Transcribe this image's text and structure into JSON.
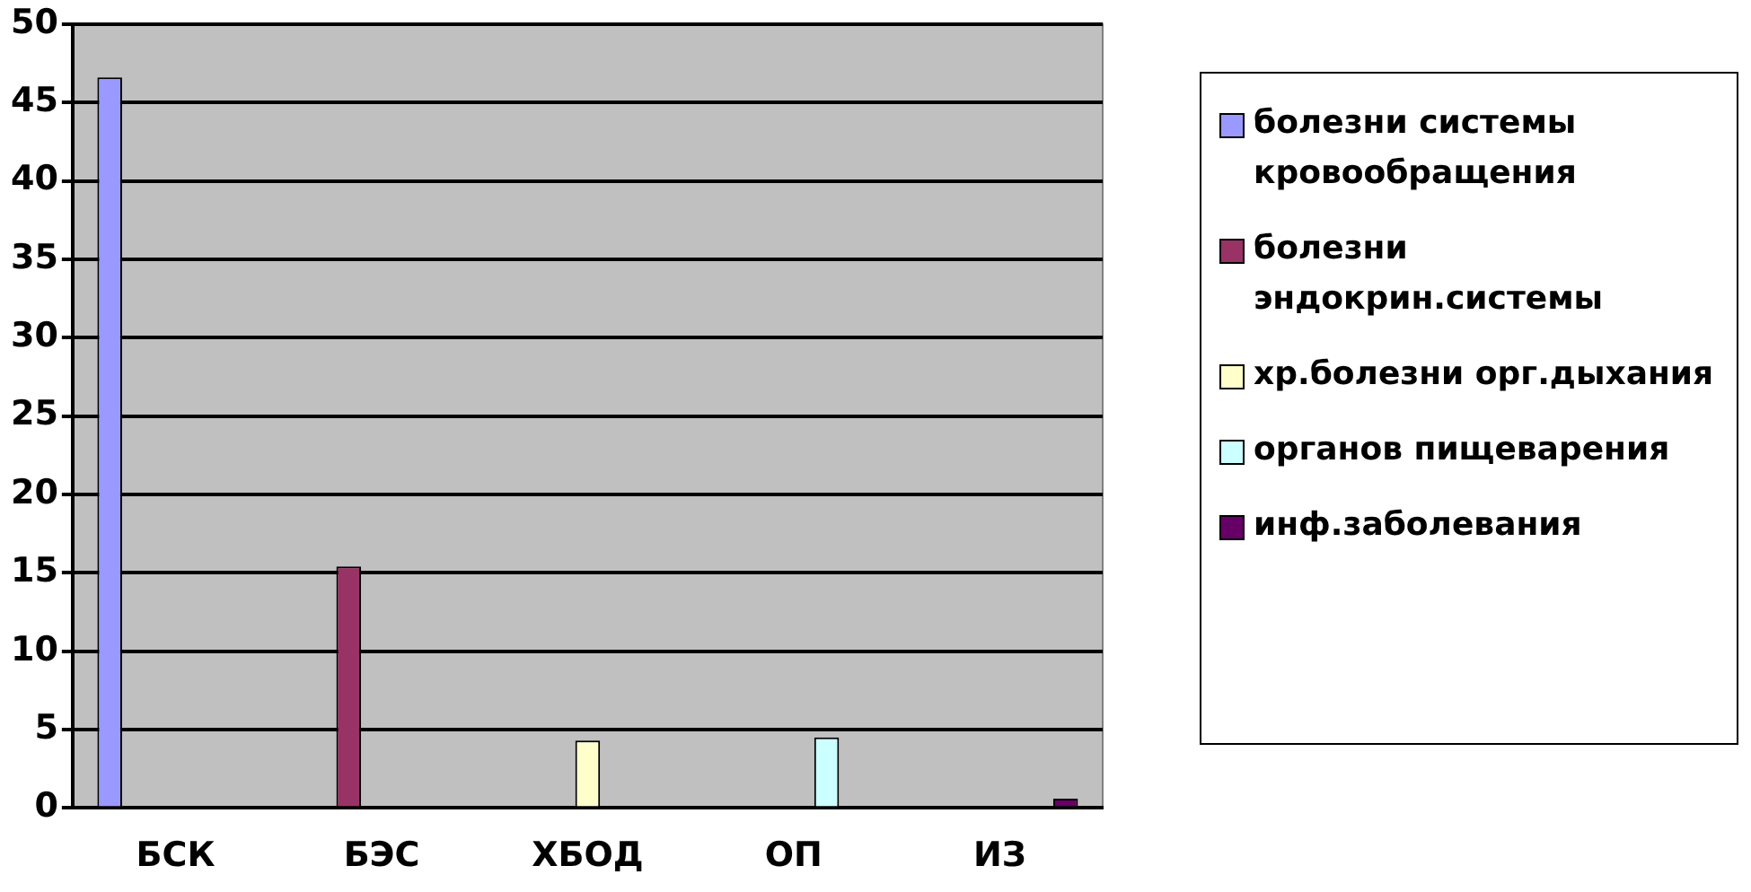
{
  "chart_data": {
    "type": "bar",
    "categories": [
      "БСК",
      "БЭС",
      "ХБОД",
      "ОП",
      "ИЗ"
    ],
    "series": [
      {
        "name": "болезни системы кровообращения",
        "color": "#9999ff",
        "values": [
          46.6,
          null,
          null,
          null,
          null
        ]
      },
      {
        "name": "болезни эндокрин.системы",
        "color": "#993366",
        "values": [
          null,
          15.4,
          null,
          null,
          null
        ]
      },
      {
        "name": "хр.болезни орг.дыхания",
        "color": "#ffffcc",
        "values": [
          null,
          null,
          4.3,
          null,
          null
        ]
      },
      {
        "name": "органов пищеварения",
        "color": "#ccffff",
        "values": [
          null,
          null,
          null,
          4.5,
          null
        ]
      },
      {
        "name": "инф.заболевания",
        "color": "#660066",
        "values": [
          null,
          null,
          null,
          null,
          0.6
        ]
      }
    ],
    "ylim": [
      0,
      50
    ],
    "yticks": [
      0,
      5,
      10,
      15,
      20,
      25,
      30,
      35,
      40,
      45,
      50
    ],
    "grid": "y",
    "legend": "right"
  }
}
